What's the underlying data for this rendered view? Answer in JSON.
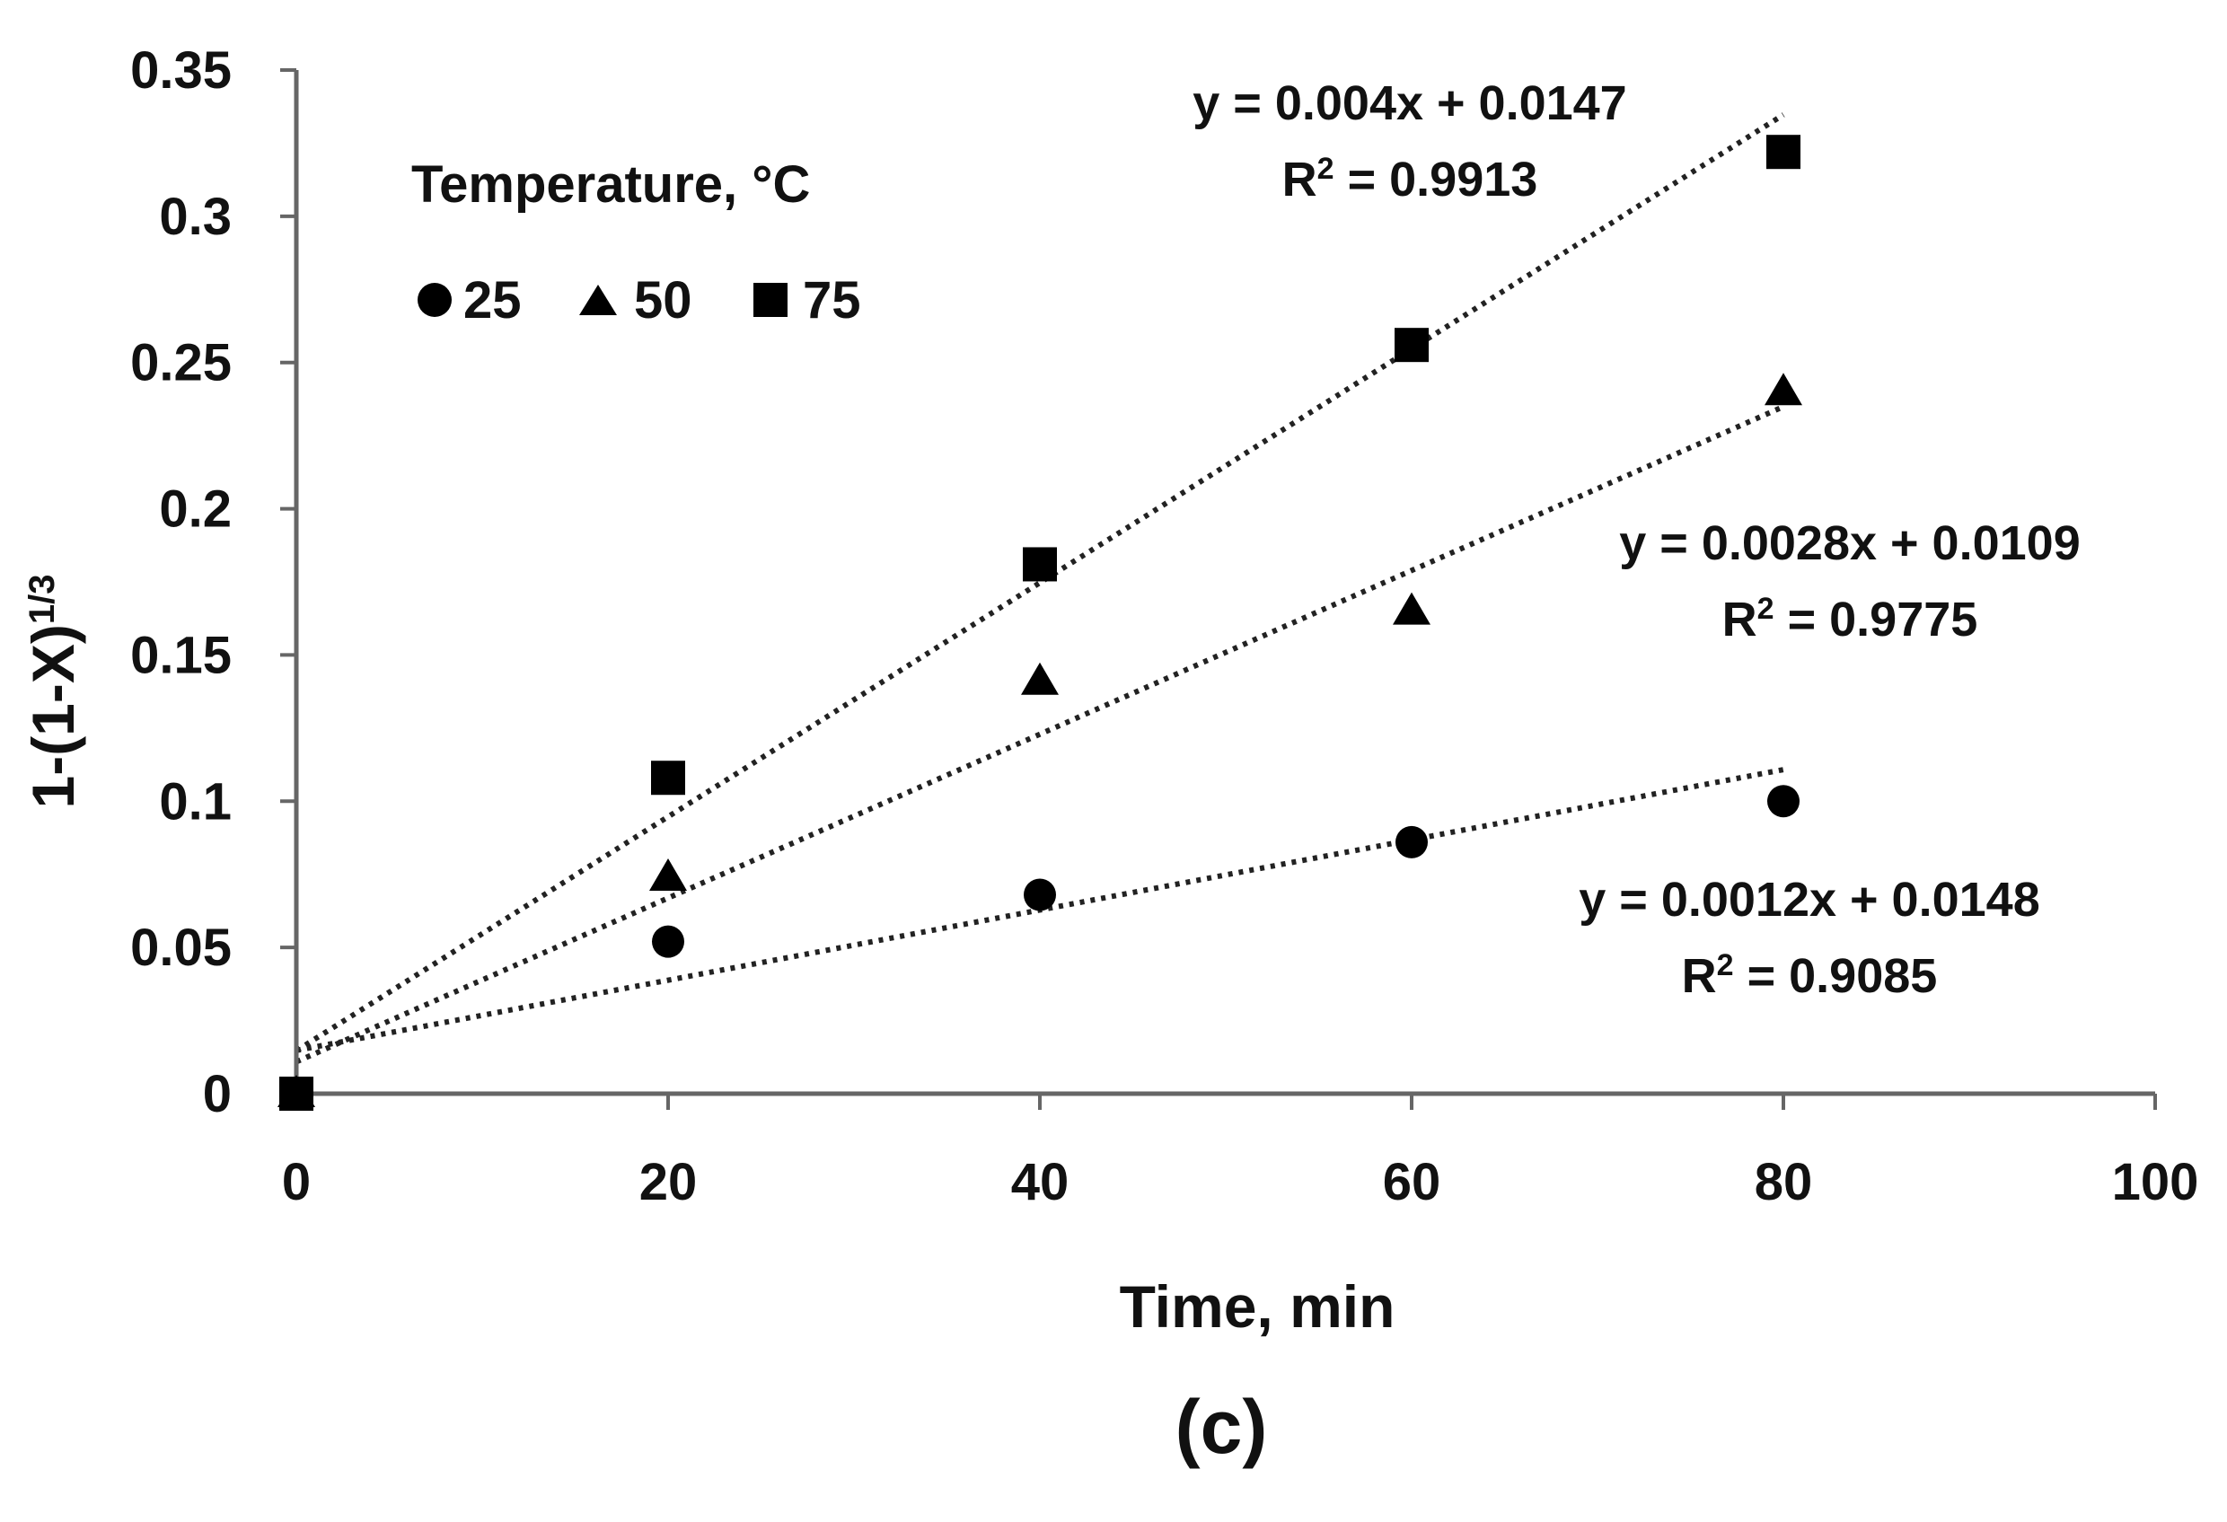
{
  "chart_data": {
    "type": "scatter",
    "title": "",
    "panel_label": "(c)",
    "xlabel": "Time, min",
    "ylabel_main": "1-(1-X)",
    "ylabel_sup": "1/3",
    "xlim": [
      0,
      100
    ],
    "ylim": [
      0,
      0.35
    ],
    "x_ticks": [
      0,
      20,
      40,
      60,
      80,
      100
    ],
    "x_tick_labels": [
      "0",
      "20",
      "40",
      "60",
      "80",
      "100"
    ],
    "y_ticks": [
      0,
      0.05,
      0.1,
      0.15,
      0.2,
      0.25,
      0.3,
      0.35
    ],
    "y_tick_labels": [
      "0",
      "0.05",
      "0.1",
      "0.15",
      "0.2",
      "0.25",
      "0.3",
      "0.35"
    ],
    "grid": false,
    "legend": {
      "title": "Temperature, °C",
      "placement": "top-left",
      "entries": [
        {
          "label": "25",
          "marker": "circle"
        },
        {
          "label": "50",
          "marker": "triangle"
        },
        {
          "label": "75",
          "marker": "square"
        }
      ]
    },
    "series": [
      {
        "name": "25",
        "marker": "circle",
        "x": [
          0,
          20,
          40,
          60,
          80
        ],
        "y": [
          0,
          0.052,
          0.068,
          0.086,
          0.1
        ],
        "trendline": {
          "slope": 0.0012,
          "intercept": 0.0148,
          "x_range": [
            0,
            80
          ],
          "equation": "y = 0.0012x + 0.0148",
          "r2_label": "R",
          "r2_sup": "2",
          "r2_value": " = 0.9085"
        }
      },
      {
        "name": "50",
        "marker": "triangle",
        "x": [
          0,
          20,
          40,
          60,
          80
        ],
        "y": [
          0,
          0.074,
          0.141,
          0.165,
          0.24
        ],
        "trendline": {
          "slope": 0.0028,
          "intercept": 0.0109,
          "x_range": [
            0,
            80
          ],
          "equation": "y = 0.0028x + 0.0109",
          "r2_label": "R",
          "r2_sup": "2",
          "r2_value": " = 0.9775"
        }
      },
      {
        "name": "75",
        "marker": "square",
        "x": [
          0,
          20,
          40,
          60,
          80
        ],
        "y": [
          0,
          0.108,
          0.181,
          0.256,
          0.322
        ],
        "trendline": {
          "slope": 0.004,
          "intercept": 0.0147,
          "x_range": [
            0,
            80
          ],
          "equation": "y = 0.004x + 0.0147",
          "r2_label": "R",
          "r2_sup": "2",
          "r2_value": " = 0.9913"
        }
      }
    ],
    "colors": {
      "marker": "#000000",
      "axis": "#666666",
      "text": "#111111",
      "trendline": "#222222"
    }
  }
}
